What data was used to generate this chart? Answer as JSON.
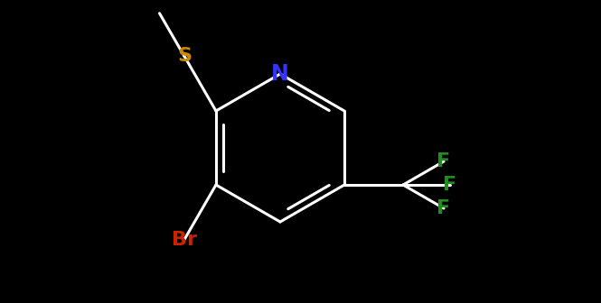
{
  "background_color": "#000000",
  "bond_color": "#ffffff",
  "bond_width": 2.2,
  "figsize": [
    6.65,
    3.36
  ],
  "dpi": 100,
  "atoms": {
    "N": {
      "color": "#3333ff"
    },
    "Br": {
      "color": "#cc2200"
    },
    "S": {
      "color": "#cc8800"
    },
    "F": {
      "color": "#228b22"
    }
  },
  "fontsize": 16
}
